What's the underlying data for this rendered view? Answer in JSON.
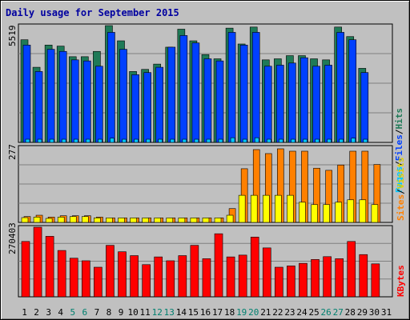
{
  "title": "Daily usage for September 2015",
  "colors": {
    "background": "#c0c0c0",
    "panel": "#c0c0c0",
    "grid": "#808080",
    "hits": "#1f7a57",
    "files": "#0040ff",
    "pages": "#00c8ff",
    "visits": "#ffff00",
    "sites": "#ff8000",
    "kbytes": "#ff0000",
    "day_weekday": "#000000",
    "day_weekend": "#00806f",
    "title": "#0000a0"
  },
  "labels": {
    "panel1_max": "5519",
    "panel2_max": "277",
    "panel3_max": "270403",
    "legend_pages": "Pages",
    "legend_files": "Files",
    "legend_hits": "Hits",
    "legend_sites": "Sites",
    "legend_visits": "Visits",
    "legend_kbytes": "KBytes",
    "slash": "/"
  },
  "chart_data": {
    "type": "bar",
    "title": "Daily usage for September 2015",
    "categories": [
      "1",
      "2",
      "3",
      "4",
      "5",
      "6",
      "7",
      "8",
      "9",
      "10",
      "11",
      "12",
      "13",
      "14",
      "15",
      "16",
      "17",
      "18",
      "19",
      "20",
      "21",
      "22",
      "23",
      "24",
      "25",
      "26",
      "27",
      "28",
      "29",
      "30",
      "31"
    ],
    "weekend_days": [
      "5",
      "6",
      "12",
      "13",
      "19",
      "20",
      "26",
      "27"
    ],
    "panels": [
      {
        "name": "hits-files-pages",
        "ymax": 5519,
        "series": [
          {
            "name": "Hits",
            "values": [
              4850,
              3550,
              4600,
              4550,
              4050,
              4050,
              4300,
              5519,
              4800,
              3350,
              3450,
              3700,
              4500,
              5350,
              4800,
              4150,
              3950,
              5400,
              4650,
              5450,
              3900,
              3950,
              4100,
              4100,
              3950,
              3900,
              5450,
              5000,
              3500,
              0,
              0
            ]
          },
          {
            "name": "Files",
            "values": [
              4600,
              3350,
              4400,
              4300,
              3900,
              3850,
              3600,
              5200,
              4400,
              3200,
              3300,
              3550,
              4500,
              5050,
              4700,
              3950,
              3850,
              5200,
              4600,
              5200,
              3600,
              3650,
              3750,
              4000,
              3600,
              3650,
              5200,
              4850,
              3300,
              0,
              0
            ]
          },
          {
            "name": "Pages",
            "values": [
              150,
              150,
              150,
              150,
              150,
              150,
              150,
              200,
              150,
              150,
              150,
              150,
              150,
              150,
              150,
              150,
              150,
              220,
              150,
              220,
              150,
              150,
              150,
              150,
              150,
              150,
              150,
              200,
              150,
              0,
              0
            ]
          }
        ]
      },
      {
        "name": "sites-visits",
        "ymax": 277,
        "series": [
          {
            "name": "Sites",
            "values": [
              22,
              27,
              20,
              25,
              25,
              25,
              20,
              17,
              17,
              17,
              17,
              17,
              17,
              17,
              17,
              17,
              17,
              52,
              202,
              274,
              259,
              277,
              268,
              268,
              204,
              196,
              216,
              268,
              268,
              218,
              0
            ]
          },
          {
            "name": "Visits",
            "values": [
              18,
              20,
              15,
              20,
              22,
              22,
              17,
              17,
              17,
              17,
              17,
              17,
              17,
              17,
              17,
              17,
              17,
              27,
              102,
              102,
              102,
              102,
              102,
              76,
              67,
              67,
              76,
              85,
              85,
              67,
              0
            ]
          }
        ]
      },
      {
        "name": "kbytes",
        "ymax": 270403,
        "series": [
          {
            "name": "KBytes",
            "values": [
              215000,
              270403,
              235000,
              180000,
              150000,
              140000,
              115000,
              200000,
              175000,
              160000,
              125000,
              155000,
              140000,
              160000,
              200000,
              148000,
              245000,
              155000,
              162000,
              232000,
              190000,
              115000,
              120000,
              130000,
              145000,
              156000,
              148000,
              215000,
              164000,
              128000,
              0
            ]
          }
        ]
      }
    ]
  }
}
